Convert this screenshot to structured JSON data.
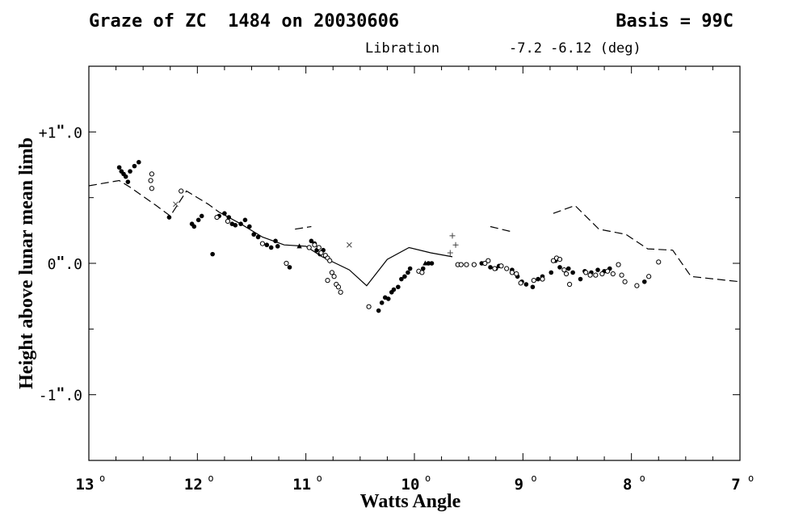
{
  "header": {
    "title": "Graze of ZC  1484 on 20030606",
    "basis": "Basis = 99C",
    "libration_label": "Libration",
    "libration_values": "-7.2 -6.12 (deg)"
  },
  "chart_data": {
    "type": "scatter",
    "xlabel": "Watts Angle",
    "ylabel": "Height above lunar mean limb",
    "xlim": [
      13,
      7
    ],
    "ylim": [
      -1.5,
      1.5
    ],
    "x_ticks": [
      {
        "value": 13,
        "label": "13"
      },
      {
        "value": 12,
        "label": "12"
      },
      {
        "value": 11,
        "label": "11"
      },
      {
        "value": 10,
        "label": "10"
      },
      {
        "value": 9,
        "label": "9"
      },
      {
        "value": 8,
        "label": "8"
      },
      {
        "value": 7,
        "label": "7"
      }
    ],
    "y_ticks": [
      {
        "value": 1.0,
        "label": "+1.0"
      },
      {
        "value": 0.0,
        "label": "0.0"
      },
      {
        "value": -1.0,
        "label": "-1.0"
      }
    ],
    "degree_symbol": "o",
    "arcsec_symbol": "\"",
    "profile_dashed": [
      [
        [
          13.0,
          0.59
        ],
        [
          12.72,
          0.63
        ],
        [
          12.62,
          0.58
        ],
        [
          12.38,
          0.44
        ],
        [
          12.25,
          0.36
        ],
        [
          12.1,
          0.55
        ],
        [
          11.9,
          0.45
        ],
        [
          11.8,
          0.39
        ]
      ],
      [
        [
          11.1,
          0.26
        ],
        [
          10.95,
          0.28
        ]
      ],
      [
        [
          9.3,
          0.28
        ],
        [
          9.1,
          0.24
        ]
      ],
      [
        [
          8.72,
          0.38
        ],
        [
          8.52,
          0.44
        ],
        [
          8.3,
          0.26
        ],
        [
          8.05,
          0.22
        ],
        [
          7.85,
          0.11
        ],
        [
          7.62,
          0.1
        ],
        [
          7.45,
          -0.1
        ],
        [
          7.0,
          -0.14
        ]
      ]
    ],
    "profile_solid": [
      [
        11.8,
        0.39
      ],
      [
        11.6,
        0.3
      ],
      [
        11.4,
        0.2
      ],
      [
        11.2,
        0.14
      ],
      [
        11.0,
        0.13
      ],
      [
        10.85,
        0.05
      ],
      [
        10.6,
        -0.05
      ],
      [
        10.44,
        -0.17
      ],
      [
        10.25,
        0.03
      ],
      [
        10.05,
        0.12
      ],
      [
        9.85,
        0.08
      ],
      [
        9.65,
        0.05
      ]
    ],
    "series": [
      {
        "marker": "filled-circle",
        "points": [
          [
            12.72,
            0.73
          ],
          [
            12.7,
            0.7
          ],
          [
            12.68,
            0.68
          ],
          [
            12.66,
            0.66
          ],
          [
            12.64,
            0.62
          ],
          [
            12.62,
            0.7
          ],
          [
            12.58,
            0.74
          ],
          [
            12.54,
            0.77
          ],
          [
            12.26,
            0.35
          ],
          [
            12.05,
            0.3
          ],
          [
            12.03,
            0.28
          ],
          [
            11.99,
            0.33
          ],
          [
            11.96,
            0.36
          ],
          [
            11.8,
            0.36
          ],
          [
            11.75,
            0.38
          ],
          [
            11.71,
            0.35
          ],
          [
            11.68,
            0.3
          ],
          [
            11.65,
            0.29
          ],
          [
            11.6,
            0.3
          ],
          [
            11.56,
            0.33
          ],
          [
            11.52,
            0.28
          ],
          [
            11.48,
            0.22
          ],
          [
            11.44,
            0.2
          ],
          [
            11.36,
            0.14
          ],
          [
            11.32,
            0.12
          ],
          [
            11.28,
            0.17
          ],
          [
            11.26,
            0.13
          ],
          [
            11.15,
            -0.03
          ],
          [
            10.95,
            0.17
          ],
          [
            10.92,
            0.15
          ],
          [
            10.9,
            0.1
          ],
          [
            10.87,
            0.07
          ],
          [
            10.84,
            0.1
          ],
          [
            11.86,
            0.07
          ],
          [
            10.33,
            -0.36
          ],
          [
            10.3,
            -0.3
          ],
          [
            10.27,
            -0.26
          ],
          [
            10.24,
            -0.27
          ],
          [
            10.21,
            -0.22
          ],
          [
            10.19,
            -0.2
          ],
          [
            10.15,
            -0.18
          ],
          [
            10.12,
            -0.12
          ],
          [
            10.09,
            -0.1
          ],
          [
            10.06,
            -0.07
          ],
          [
            10.04,
            -0.04
          ],
          [
            9.92,
            -0.04
          ],
          [
            9.87,
            0.0
          ],
          [
            9.84,
            0.0
          ],
          [
            9.38,
            0.0
          ],
          [
            9.3,
            -0.03
          ],
          [
            9.25,
            -0.04
          ],
          [
            9.22,
            -0.02
          ],
          [
            9.1,
            -0.05
          ],
          [
            9.05,
            -0.1
          ],
          [
            9.01,
            -0.14
          ],
          [
            8.97,
            -0.16
          ],
          [
            8.91,
            -0.18
          ],
          [
            8.86,
            -0.12
          ],
          [
            8.82,
            -0.1
          ],
          [
            8.74,
            -0.07
          ],
          [
            8.7,
            0.02
          ],
          [
            8.66,
            -0.03
          ],
          [
            8.58,
            -0.04
          ],
          [
            8.54,
            -0.07
          ],
          [
            8.47,
            -0.12
          ],
          [
            8.43,
            -0.06
          ],
          [
            8.37,
            -0.07
          ],
          [
            8.31,
            -0.05
          ],
          [
            8.25,
            -0.06
          ],
          [
            8.2,
            -0.04
          ],
          [
            7.88,
            -0.14
          ]
        ]
      },
      {
        "marker": "open-circle",
        "points": [
          [
            12.42,
            0.68
          ],
          [
            12.43,
            0.63
          ],
          [
            12.42,
            0.57
          ],
          [
            12.15,
            0.55
          ],
          [
            11.82,
            0.35
          ],
          [
            11.4,
            0.15
          ],
          [
            11.18,
            0.0
          ],
          [
            10.97,
            0.12
          ],
          [
            10.92,
            0.14
          ],
          [
            10.88,
            0.12
          ],
          [
            10.86,
            0.08
          ],
          [
            10.82,
            0.06
          ],
          [
            10.8,
            0.04
          ],
          [
            10.78,
            0.02
          ],
          [
            10.8,
            -0.13
          ],
          [
            10.76,
            -0.07
          ],
          [
            10.74,
            -0.1
          ],
          [
            10.72,
            -0.16
          ],
          [
            10.7,
            -0.18
          ],
          [
            10.68,
            -0.22
          ],
          [
            10.42,
            -0.33
          ],
          [
            9.96,
            -0.06
          ],
          [
            9.93,
            -0.07
          ],
          [
            9.6,
            -0.01
          ],
          [
            9.57,
            -0.01
          ],
          [
            9.52,
            -0.01
          ],
          [
            9.45,
            -0.01
          ],
          [
            9.35,
            0.0
          ],
          [
            9.32,
            0.02
          ],
          [
            9.26,
            -0.04
          ],
          [
            9.2,
            -0.02
          ],
          [
            9.15,
            -0.04
          ],
          [
            9.1,
            -0.07
          ],
          [
            9.06,
            -0.08
          ],
          [
            9.02,
            -0.15
          ],
          [
            8.9,
            -0.13
          ],
          [
            8.82,
            -0.12
          ],
          [
            8.72,
            0.02
          ],
          [
            8.69,
            0.04
          ],
          [
            8.66,
            0.03
          ],
          [
            8.62,
            -0.05
          ],
          [
            8.6,
            -0.08
          ],
          [
            8.57,
            -0.16
          ],
          [
            8.42,
            -0.07
          ],
          [
            8.38,
            -0.09
          ],
          [
            8.33,
            -0.09
          ],
          [
            8.27,
            -0.08
          ],
          [
            8.22,
            -0.06
          ],
          [
            8.17,
            -0.08
          ],
          [
            8.12,
            -0.01
          ],
          [
            8.09,
            -0.09
          ],
          [
            8.06,
            -0.14
          ],
          [
            7.95,
            -0.17
          ],
          [
            7.84,
            -0.1
          ],
          [
            7.75,
            0.01
          ],
          [
            11.72,
            0.32
          ]
        ]
      },
      {
        "marker": "cross",
        "points": [
          [
            12.2,
            0.45
          ],
          [
            10.6,
            0.14
          ]
        ]
      },
      {
        "marker": "plus",
        "points": [
          [
            9.65,
            0.21
          ],
          [
            9.62,
            0.14
          ],
          [
            9.67,
            0.08
          ]
        ]
      },
      {
        "marker": "triangle",
        "points": [
          [
            11.06,
            0.13
          ],
          [
            9.9,
            0.0
          ]
        ]
      }
    ]
  }
}
